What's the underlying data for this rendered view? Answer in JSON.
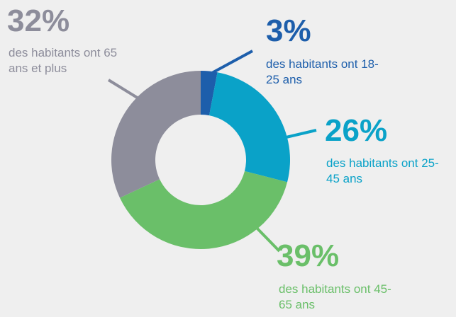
{
  "chart_data": {
    "type": "donut",
    "categories": [
      "des habitants ont 18-25 ans",
      "des habitants ont 25-45 ans",
      "des habitants ont 45-65 ans",
      "des habitants ont 65 ans et plus"
    ],
    "values": [
      3,
      26,
      39,
      32
    ],
    "value_labels": [
      "3%",
      "26%",
      "39%",
      "32%"
    ],
    "colors": [
      "#1d5eab",
      "#0aa2c8",
      "#6abf69",
      "#8d8d9b"
    ]
  }
}
